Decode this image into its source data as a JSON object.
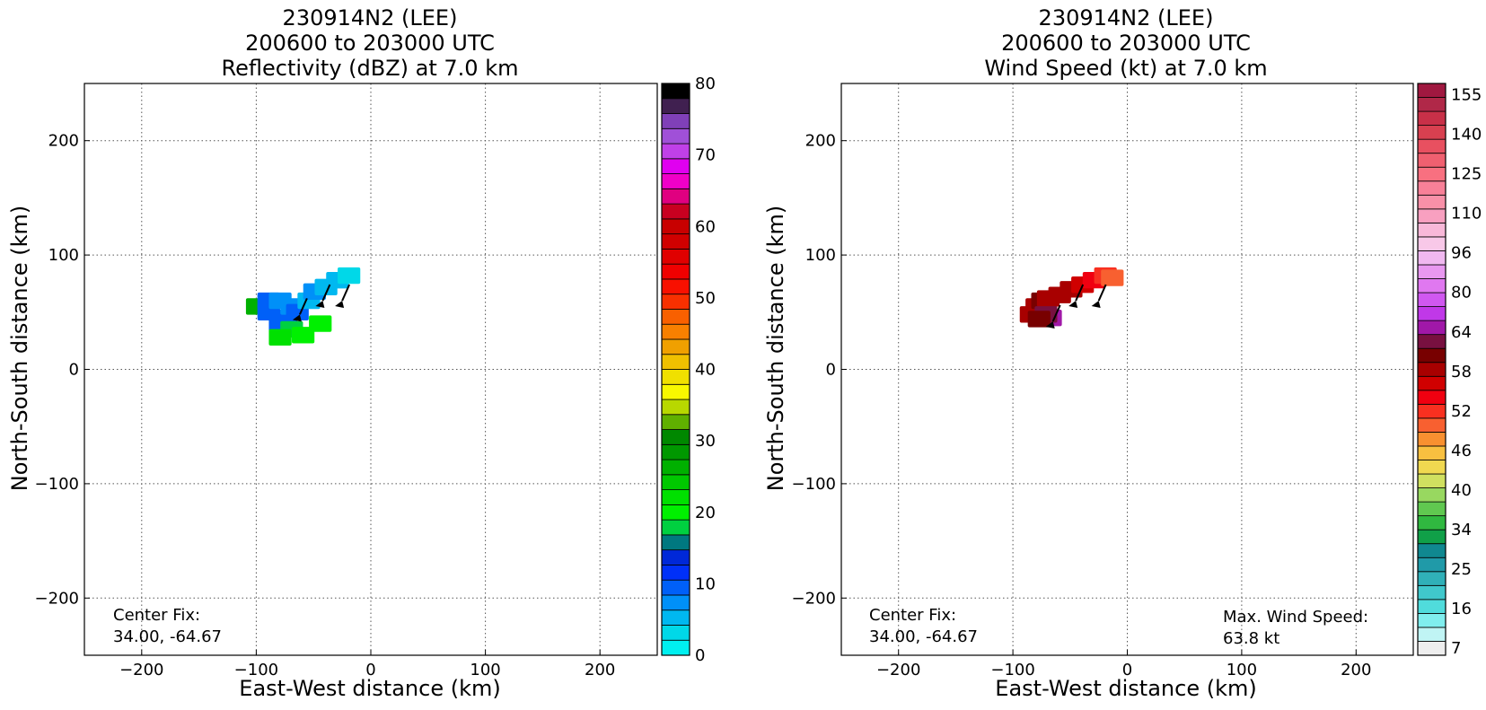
{
  "chart_data": [
    {
      "type": "heatmap",
      "title_lines": [
        "230914N2 (LEE)",
        "200600 to 203000 UTC",
        "Reflectivity (dBZ) at 7.0 km"
      ],
      "xlabel": "East-West distance (km)",
      "ylabel": "North-South distance (km)",
      "xlim": [
        -250,
        250
      ],
      "ylim": [
        -250,
        250
      ],
      "xticks": [
        -200,
        -100,
        0,
        100,
        200
      ],
      "yticks": [
        -200,
        -100,
        0,
        100,
        200
      ],
      "grid": true,
      "annotations": [
        {
          "lines": [
            "Center Fix:",
            "34.00, -64.67"
          ],
          "position": "bottom-left"
        }
      ],
      "colorbar": {
        "range": [
          0,
          80
        ],
        "ticks": [
          0,
          10,
          20,
          30,
          40,
          50,
          60,
          70,
          80
        ],
        "colors": [
          "#00f0f0",
          "#00d8e8",
          "#00b8f0",
          "#0090f8",
          "#0060f8",
          "#0030f8",
          "#0028d8",
          "#007880",
          "#00d040",
          "#00f000",
          "#00e000",
          "#00c800",
          "#00b000",
          "#009800",
          "#008800",
          "#60b000",
          "#b8d800",
          "#f8f800",
          "#f0e000",
          "#f0c000",
          "#f0a000",
          "#f88000",
          "#f86000",
          "#f83000",
          "#f81000",
          "#f00000",
          "#e00000",
          "#d00000",
          "#c80000",
          "#c80020",
          "#e00080",
          "#f000c8",
          "#e000f0",
          "#c040e8",
          "#a050d8",
          "#8040b8",
          "#402050",
          "#000000"
        ]
      },
      "scalar_field": {
        "units": "dBZ",
        "cells": [
          {
            "x": -100,
            "y": 55,
            "v": 26
          },
          {
            "x": -90,
            "y": 50,
            "v": 10
          },
          {
            "x": -90,
            "y": 60,
            "v": 10
          },
          {
            "x": -80,
            "y": 60,
            "v": 8
          },
          {
            "x": -75,
            "y": 45,
            "v": 10
          },
          {
            "x": -70,
            "y": 55,
            "v": 8
          },
          {
            "x": -65,
            "y": 50,
            "v": 10
          },
          {
            "x": -55,
            "y": 60,
            "v": 6
          },
          {
            "x": -50,
            "y": 68,
            "v": 7
          },
          {
            "x": -40,
            "y": 72,
            "v": 6
          },
          {
            "x": -30,
            "y": 78,
            "v": 5
          },
          {
            "x": -20,
            "y": 82,
            "v": 3
          },
          {
            "x": -80,
            "y": 40,
            "v": 10
          },
          {
            "x": -70,
            "y": 35,
            "v": 18
          },
          {
            "x": -60,
            "y": 30,
            "v": 20
          },
          {
            "x": -80,
            "y": 28,
            "v": 22
          },
          {
            "x": -45,
            "y": 40,
            "v": 21
          }
        ]
      },
      "wind_barbs": [
        {
          "x": -62,
          "y": 48,
          "speed_kt": 50
        },
        {
          "x": -42,
          "y": 60,
          "speed_kt": 50
        },
        {
          "x": -25,
          "y": 60,
          "speed_kt": 50
        }
      ]
    },
    {
      "type": "heatmap",
      "title_lines": [
        "230914N2 (LEE)",
        "200600 to 203000 UTC",
        "Wind Speed (kt) at 7.0 km"
      ],
      "xlabel": "East-West distance (km)",
      "ylabel": "North-South distance (km)",
      "xlim": [
        -250,
        250
      ],
      "ylim": [
        -250,
        250
      ],
      "xticks": [
        -200,
        -100,
        0,
        100,
        200
      ],
      "yticks": [
        -200,
        -100,
        0,
        100,
        200
      ],
      "grid": true,
      "annotations": [
        {
          "lines": [
            "Center Fix:",
            "34.00, -64.67"
          ],
          "position": "bottom-left"
        },
        {
          "lines": [
            "Max. Wind Speed:",
            "63.8 kt"
          ],
          "position": "bottom-right"
        }
      ],
      "colorbar": {
        "tick_labels": [
          "7",
          "16",
          "25",
          "34",
          "40",
          "46",
          "52",
          "58",
          "64",
          "80",
          "96",
          "110",
          "125",
          "140",
          "155"
        ],
        "colors": [
          "#eeeeee",
          "#c0f4f4",
          "#80eeee",
          "#50dcdc",
          "#40c8cc",
          "#30b0b8",
          "#209aa8",
          "#108890",
          "#10a048",
          "#30b840",
          "#60c850",
          "#98d860",
          "#d0e060",
          "#f0d850",
          "#f8c040",
          "#f89030",
          "#f86030",
          "#f83020",
          "#f00010",
          "#d00000",
          "#a80000",
          "#780000",
          "#781040",
          "#a018a8",
          "#c038e8",
          "#d058f0",
          "#e078f0",
          "#e898f0",
          "#f0b8f0",
          "#f8c8e8",
          "#f8b8d8",
          "#f8a0c0",
          "#f890a8",
          "#f88098",
          "#f87080",
          "#f06070",
          "#e85060",
          "#d84050",
          "#c83048",
          "#b02848",
          "#a01840"
        ]
      },
      "scalar_field": {
        "units": "kt",
        "cells": [
          {
            "x": -85,
            "y": 48,
            "v": 58
          },
          {
            "x": -80,
            "y": 55,
            "v": 58
          },
          {
            "x": -75,
            "y": 60,
            "v": 60
          },
          {
            "x": -70,
            "y": 62,
            "v": 58
          },
          {
            "x": -60,
            "y": 65,
            "v": 58
          },
          {
            "x": -50,
            "y": 70,
            "v": 58
          },
          {
            "x": -40,
            "y": 74,
            "v": 56
          },
          {
            "x": -30,
            "y": 78,
            "v": 54
          },
          {
            "x": -20,
            "y": 82,
            "v": 52
          },
          {
            "x": -14,
            "y": 80,
            "v": 50
          },
          {
            "x": -68,
            "y": 45,
            "v": 64
          },
          {
            "x": -72,
            "y": 48,
            "v": 62
          },
          {
            "x": -78,
            "y": 44,
            "v": 60
          }
        ]
      },
      "wind_barbs": [
        {
          "x": -65,
          "y": 42,
          "speed_kt": 50
        },
        {
          "x": -45,
          "y": 60,
          "speed_kt": 50
        },
        {
          "x": -25,
          "y": 60,
          "speed_kt": 50
        }
      ]
    }
  ]
}
